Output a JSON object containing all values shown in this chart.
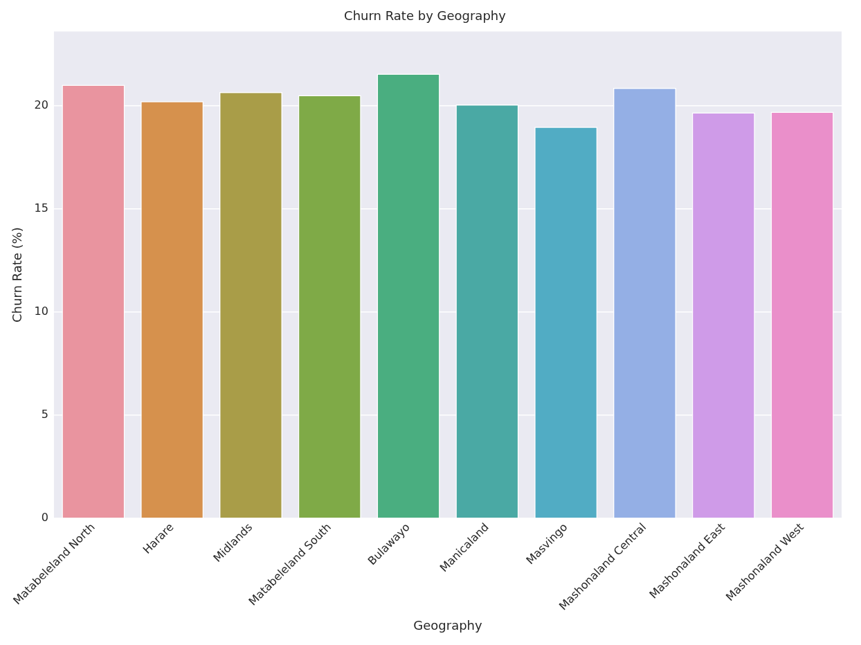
{
  "chart_data": {
    "type": "bar",
    "title": "Churn Rate by Geography",
    "xlabel": "Geography",
    "ylabel": "Churn Rate (%)",
    "categories": [
      "Matabeleland North",
      "Harare",
      "Midlands",
      "Matabeleland South",
      "Bulawayo",
      "Manicaland",
      "Masvingo",
      "Mashonaland Central",
      "Mashonaland East",
      "Mashonaland West"
    ],
    "values": [
      21.02,
      20.22,
      20.67,
      20.52,
      21.56,
      20.06,
      18.98,
      20.87,
      19.68,
      19.71
    ],
    "colors": [
      "#e9949f",
      "#d6914d",
      "#a99d48",
      "#7faa47",
      "#4aae80",
      "#4aa9a4",
      "#51acc4",
      "#94afe5",
      "#cf9be8",
      "#ea8fca"
    ],
    "ylim": [
      0,
      23.6
    ],
    "yticks": [
      0,
      5,
      10,
      15,
      20
    ],
    "grid": "y",
    "legend": false
  }
}
